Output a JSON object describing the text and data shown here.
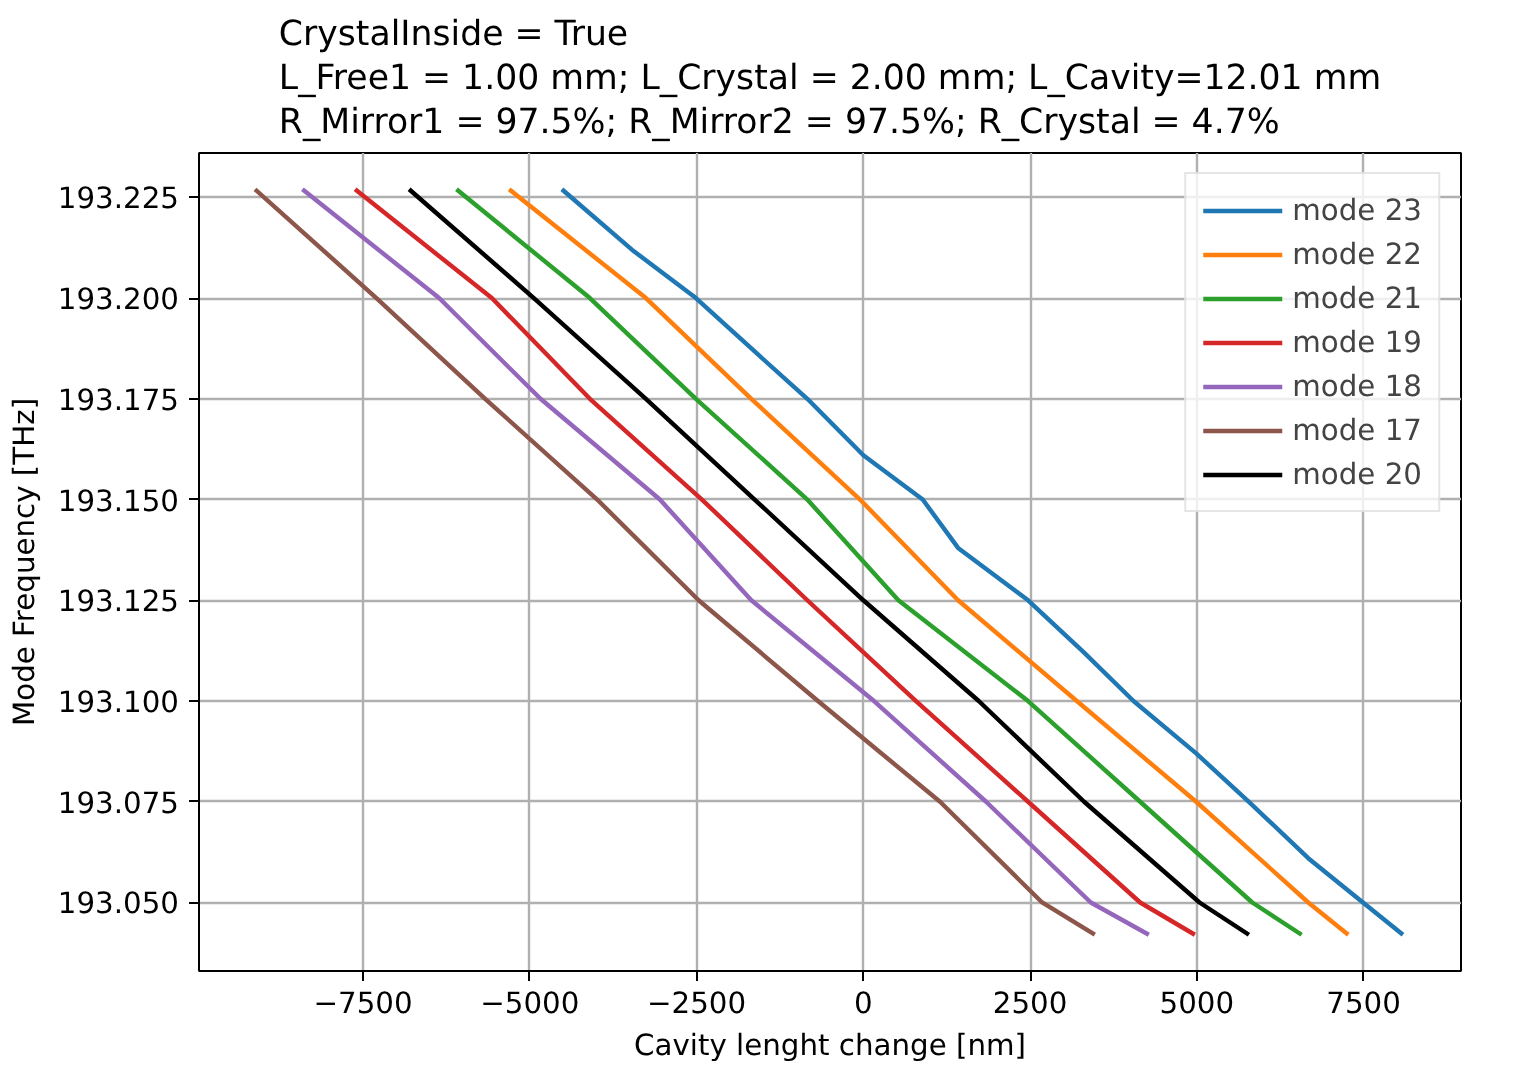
{
  "chart_data": {
    "type": "line",
    "title": "CrystalInside = True\nL_Free1 = 1.00 mm; L_Crystal = 2.00 mm; L_Cavity=12.01 mm\nR_Mirror1 = 97.5%; R_Mirror2 = 97.5%; R_Crystal = 4.7%",
    "xlabel": "Cavity lenght change [nm]",
    "ylabel": "Mode Frequency [THz]",
    "xlim": [
      -9960,
      8960
    ],
    "ylim": [
      193.033,
      193.236
    ],
    "xticks": [
      {
        "value": -7500,
        "label": "−7500"
      },
      {
        "value": -5000,
        "label": "−5000"
      },
      {
        "value": -2500,
        "label": "−2500"
      },
      0,
      2500,
      5000,
      7500
    ],
    "yticks": [
      {
        "value": 193.05,
        "label": "193.050"
      },
      193.075,
      {
        "value": 193.1,
        "label": "193.100"
      },
      193.125,
      {
        "value": 193.15,
        "label": "193.150"
      },
      193.175,
      {
        "value": 193.2,
        "label": "193.200"
      },
      193.225
    ],
    "grid": true,
    "legend": "top right",
    "line_style": "solid",
    "marker": "none",
    "series": [
      {
        "name": "mode 23",
        "color": "#1f77b4",
        "x": [
          -4520,
          -3470,
          -2510,
          -1580,
          -840,
          0,
          890,
          1420,
          2470,
          3310,
          4050,
          4990,
          5780,
          6670,
          7490,
          8090
        ],
        "values": [
          193.227,
          193.212,
          193.2,
          193.186,
          193.175,
          193.161,
          193.15,
          193.138,
          193.125,
          193.112,
          193.1,
          193.087,
          193.075,
          193.061,
          193.05,
          193.042
        ]
      },
      {
        "name": "mode 22",
        "color": "#ff7f0e",
        "x": [
          -5310,
          -3260,
          -1680,
          -50,
          1420,
          3200,
          4990,
          6670,
          7270
        ],
        "values": [
          193.227,
          193.2,
          193.175,
          193.15,
          193.125,
          193.1,
          193.075,
          193.05,
          193.042
        ]
      },
      {
        "name": "mode 21",
        "color": "#2ca02c",
        "x": [
          -6100,
          -4100,
          -2510,
          -840,
          525,
          2470,
          4150,
          5830,
          6570
        ],
        "values": [
          193.227,
          193.2,
          193.175,
          193.15,
          193.125,
          193.1,
          193.075,
          193.05,
          193.042
        ]
      },
      {
        "name": "mode 19",
        "color": "#d62728",
        "x": [
          -7620,
          -5570,
          -4100,
          -2420,
          -840,
          790,
          2470,
          4150,
          4970
        ],
        "values": [
          193.227,
          193.2,
          193.175,
          193.15,
          193.125,
          193.1,
          193.075,
          193.05,
          193.042
        ]
      },
      {
        "name": "mode 18",
        "color": "#9467bd",
        "x": [
          -8410,
          -6360,
          -4840,
          -3050,
          -1680,
          160,
          1840,
          3410,
          4280
        ],
        "values": [
          193.227,
          193.2,
          193.175,
          193.15,
          193.125,
          193.1,
          193.075,
          193.05,
          193.042
        ]
      },
      {
        "name": "mode 17",
        "color": "#8c564b",
        "x": [
          -9120,
          -7300,
          -5670,
          -3990,
          -2470,
          -680,
          1150,
          2680,
          3470
        ],
        "values": [
          193.227,
          193.2,
          193.175,
          193.15,
          193.125,
          193.1,
          193.075,
          193.05,
          193.042
        ]
      },
      {
        "name": "mode 20",
        "color": "#000000",
        "x": [
          -6810,
          -4940,
          -3260,
          -1630,
          0,
          1730,
          3310,
          5040,
          5780
        ],
        "values": [
          193.227,
          193.2,
          193.175,
          193.15,
          193.125,
          193.1,
          193.075,
          193.05,
          193.042
        ]
      }
    ]
  }
}
